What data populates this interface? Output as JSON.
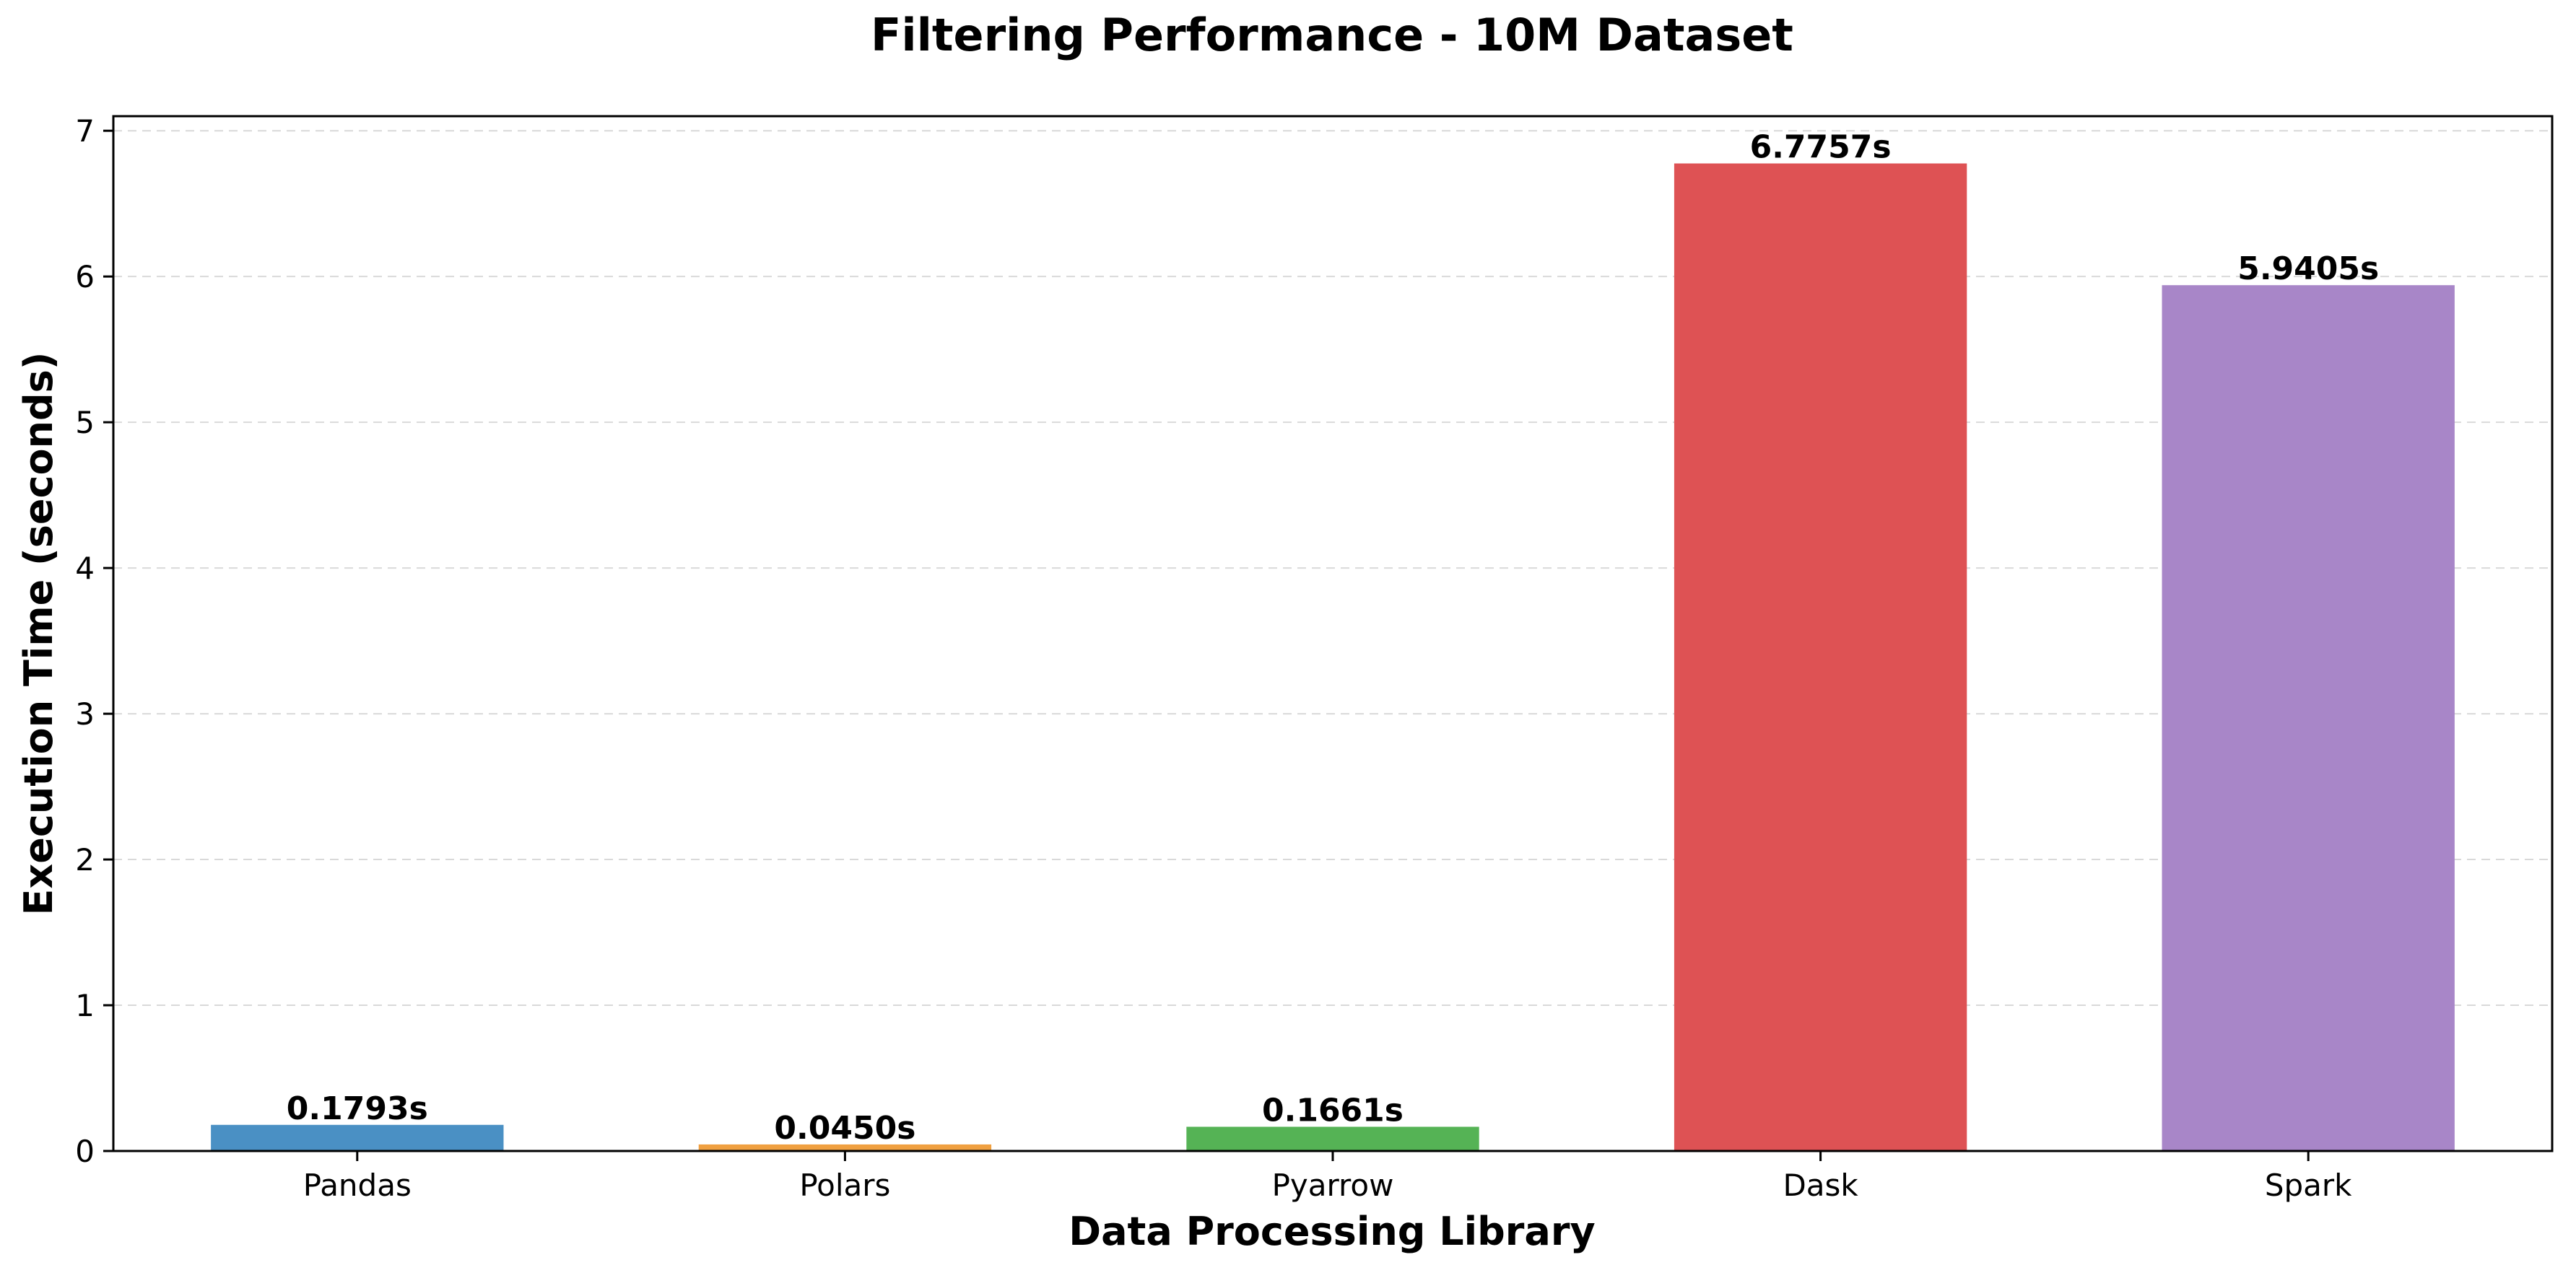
{
  "chart_data": {
    "type": "bar",
    "title": "Filtering Performance - 10M Dataset",
    "xlabel": "Data Processing Library",
    "ylabel": "Execution Time (seconds)",
    "categories": [
      "Pandas",
      "Polars",
      "Pyarrow",
      "Dask",
      "Spark"
    ],
    "values": [
      0.1793,
      0.045,
      0.1661,
      6.7757,
      5.9405
    ],
    "value_labels": [
      "0.1793s",
      "0.0450s",
      "0.1661s",
      "6.7757s",
      "5.9405s"
    ],
    "colors": [
      "#4a90c4",
      "#f0a040",
      "#55b355",
      "#de5254",
      "#a886c8"
    ],
    "ylim": [
      0,
      7.1
    ],
    "yticks": [
      0,
      1,
      2,
      3,
      4,
      5,
      6,
      7
    ],
    "ytick_labels": [
      "0",
      "1",
      "2",
      "3",
      "4",
      "5",
      "6",
      "7"
    ],
    "grid": "y-dashed",
    "legend": "none"
  }
}
